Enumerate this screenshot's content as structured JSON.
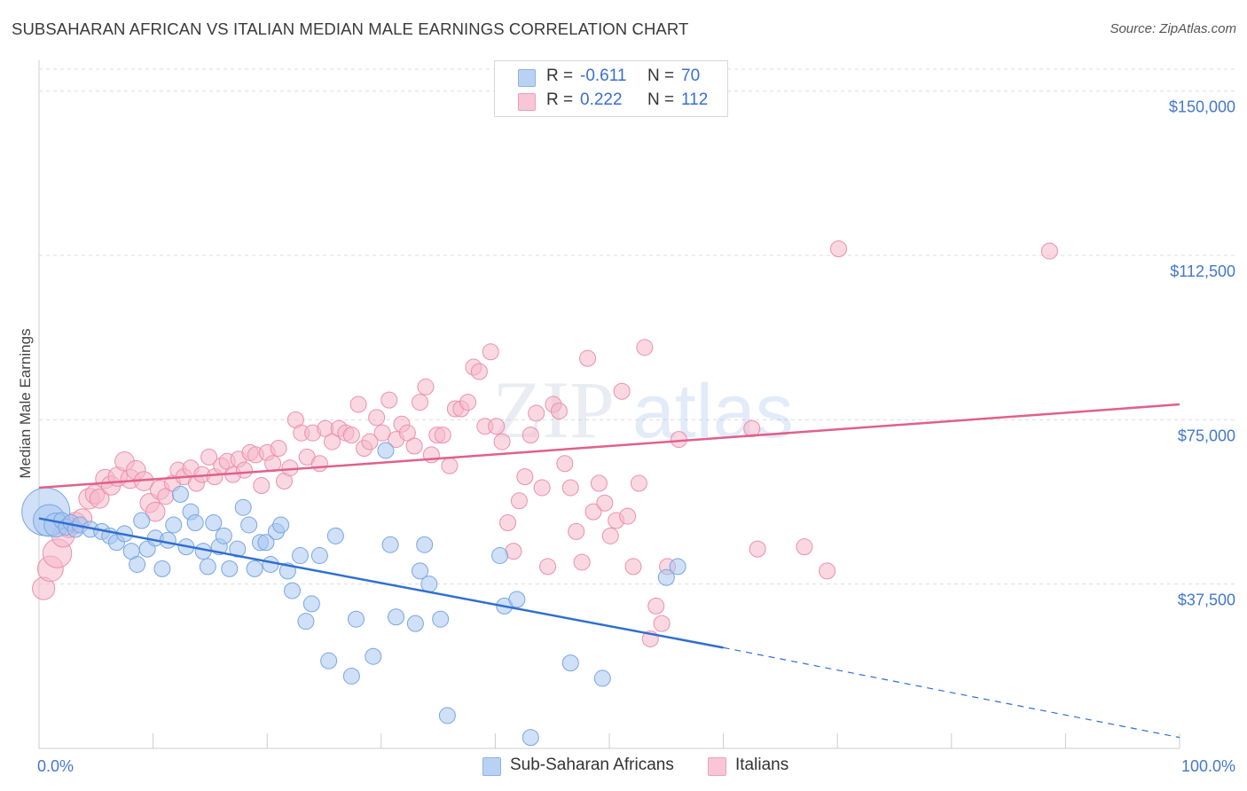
{
  "header": {
    "title": "SUBSAHARAN AFRICAN VS ITALIAN MEDIAN MALE EARNINGS CORRELATION CHART",
    "source": "Source: ZipAtlas.com"
  },
  "legend": {
    "rows": [
      {
        "r_label": "R =",
        "r_value": "-0.611",
        "n_label": "N =",
        "n_value": "70"
      },
      {
        "r_label": "R =",
        "r_value": "0.222",
        "n_label": "N =",
        "n_value": "112"
      }
    ],
    "series": [
      "Sub-Saharan Africans",
      "Italians"
    ]
  },
  "watermark": {
    "zip": "ZIP",
    "atlas": "atlas"
  },
  "colors": {
    "blue_fill": "#a8c6f0",
    "blue_stroke": "#7aa6e0",
    "blue_line": "#2f6fd0",
    "pink_fill": "#f5b8cb",
    "pink_stroke": "#ec8fae",
    "pink_line": "#e0608c",
    "tick_text": "#4477cc",
    "grid": "#dddddd"
  },
  "chart_data": {
    "type": "scatter",
    "title": "SUBSAHARAN AFRICAN VS ITALIAN MEDIAN MALE EARNINGS CORRELATION CHART",
    "xlabel": "",
    "ylabel": "Median Male Earnings",
    "xlim": [
      0,
      100
    ],
    "ylim": [
      0,
      155000
    ],
    "x_tick_labels": [
      "0.0%",
      "100.0%"
    ],
    "y_ticks": [
      37500,
      75000,
      112500,
      150000
    ],
    "y_tick_labels": [
      "$37,500",
      "$75,000",
      "$112,500",
      "$150,000"
    ],
    "grid": true,
    "legend_position": "top-center",
    "series": [
      {
        "name": "Sub-Saharan Africans",
        "r": -0.611,
        "n": 70,
        "trend": {
          "x": [
            0,
            60,
            100
          ],
          "y": [
            52500,
            23000,
            2500
          ],
          "solid_until": 60
        },
        "points": [
          [
            0.6,
            54000,
            3
          ],
          [
            0.9,
            52000,
            2
          ],
          [
            1.5,
            51000,
            1.5
          ],
          [
            2.0,
            52000,
            1
          ],
          [
            2.4,
            50500,
            1
          ],
          [
            2.8,
            51500,
            1
          ],
          [
            3.2,
            50000,
            1
          ],
          [
            3.6,
            51000,
            1
          ],
          [
            4.5,
            50000,
            1
          ],
          [
            5.5,
            49500,
            1
          ],
          [
            6.2,
            48500,
            1
          ],
          [
            6.8,
            47000,
            1
          ],
          [
            7.5,
            49000,
            1
          ],
          [
            8.1,
            45000,
            1
          ],
          [
            8.6,
            42000,
            1
          ],
          [
            9.0,
            52000,
            1
          ],
          [
            9.5,
            45500,
            1
          ],
          [
            10.2,
            48000,
            1
          ],
          [
            10.8,
            41000,
            1
          ],
          [
            11.3,
            47500,
            1
          ],
          [
            11.8,
            51000,
            1
          ],
          [
            12.4,
            58000,
            1
          ],
          [
            12.9,
            46000,
            1
          ],
          [
            13.3,
            54000,
            1
          ],
          [
            13.7,
            51500,
            1
          ],
          [
            14.4,
            45000,
            1
          ],
          [
            14.8,
            41500,
            1
          ],
          [
            15.3,
            51500,
            1
          ],
          [
            15.8,
            46000,
            1
          ],
          [
            16.2,
            48500,
            1
          ],
          [
            16.7,
            41000,
            1
          ],
          [
            17.4,
            45500,
            1
          ],
          [
            17.9,
            55000,
            1
          ],
          [
            18.4,
            51000,
            1
          ],
          [
            18.9,
            41000,
            1
          ],
          [
            19.4,
            47000,
            1
          ],
          [
            19.9,
            47000,
            1
          ],
          [
            20.3,
            42000,
            1
          ],
          [
            20.8,
            49500,
            1
          ],
          [
            21.2,
            51000,
            1
          ],
          [
            21.8,
            40500,
            1
          ],
          [
            22.2,
            36000,
            1
          ],
          [
            22.9,
            44000,
            1
          ],
          [
            23.4,
            29000,
            1
          ],
          [
            23.9,
            33000,
            1
          ],
          [
            24.6,
            44000,
            1
          ],
          [
            25.4,
            20000,
            1
          ],
          [
            26.0,
            48500,
            1
          ],
          [
            27.4,
            16500,
            1
          ],
          [
            27.8,
            29500,
            1
          ],
          [
            29.3,
            21000,
            1
          ],
          [
            30.4,
            68000,
            1
          ],
          [
            30.8,
            46500,
            1
          ],
          [
            31.3,
            30000,
            1
          ],
          [
            33.0,
            28500,
            1
          ],
          [
            33.4,
            40500,
            1
          ],
          [
            33.8,
            46500,
            1
          ],
          [
            34.2,
            37500,
            1
          ],
          [
            35.2,
            29500,
            1
          ],
          [
            35.8,
            7500,
            1
          ],
          [
            40.4,
            44000,
            1
          ],
          [
            40.8,
            32500,
            1
          ],
          [
            41.9,
            34000,
            1
          ],
          [
            43.1,
            2500,
            1
          ],
          [
            46.6,
            19500,
            1
          ],
          [
            49.4,
            16000,
            1
          ],
          [
            55.0,
            39000,
            1
          ],
          [
            56.0,
            41500,
            1
          ]
        ]
      },
      {
        "name": "Italians",
        "r": 0.222,
        "n": 112,
        "trend": {
          "x": [
            0,
            100
          ],
          "y": [
            59500,
            78500
          ]
        },
        "points": [
          [
            0.4,
            36500,
            1.4
          ],
          [
            1.0,
            41000,
            1.6
          ],
          [
            1.6,
            44500,
            1.8
          ],
          [
            2.1,
            48500,
            1.4
          ],
          [
            2.6,
            50500,
            1.3
          ],
          [
            3.2,
            51500,
            1.3
          ],
          [
            3.8,
            52500,
            1.2
          ],
          [
            4.4,
            57000,
            1.3
          ],
          [
            4.9,
            58000,
            1.2
          ],
          [
            5.3,
            57000,
            1.2
          ],
          [
            5.8,
            61500,
            1.2
          ],
          [
            6.3,
            60000,
            1.2
          ],
          [
            6.9,
            62000,
            1.2
          ],
          [
            7.5,
            65500,
            1.2
          ],
          [
            8.0,
            61500,
            1.2
          ],
          [
            8.5,
            63500,
            1.2
          ],
          [
            9.2,
            61000,
            1.2
          ],
          [
            9.7,
            56000,
            1.2
          ],
          [
            10.2,
            54000,
            1.2
          ],
          [
            10.6,
            59000,
            1.2
          ],
          [
            11.1,
            57500,
            1
          ],
          [
            11.7,
            60500,
            1
          ],
          [
            12.2,
            63500,
            1
          ],
          [
            12.7,
            62000,
            1
          ],
          [
            13.3,
            64000,
            1
          ],
          [
            13.8,
            60500,
            1
          ],
          [
            14.3,
            62500,
            1
          ],
          [
            14.9,
            66500,
            1
          ],
          [
            15.4,
            62000,
            1
          ],
          [
            16.0,
            64500,
            1
          ],
          [
            16.5,
            65500,
            1
          ],
          [
            17.0,
            62500,
            1
          ],
          [
            17.5,
            66000,
            1
          ],
          [
            18.0,
            63500,
            1
          ],
          [
            18.5,
            67500,
            1
          ],
          [
            19.0,
            67000,
            1
          ],
          [
            19.5,
            60000,
            1
          ],
          [
            20.0,
            67500,
            1
          ],
          [
            20.5,
            65000,
            1
          ],
          [
            21.0,
            68500,
            1
          ],
          [
            21.5,
            61000,
            1
          ],
          [
            22.0,
            64000,
            1
          ],
          [
            22.5,
            75000,
            1
          ],
          [
            23.0,
            72000,
            1
          ],
          [
            23.5,
            66500,
            1
          ],
          [
            24.0,
            72000,
            1
          ],
          [
            24.6,
            65000,
            1
          ],
          [
            25.1,
            73000,
            1
          ],
          [
            25.7,
            70000,
            1
          ],
          [
            26.3,
            73000,
            1
          ],
          [
            26.9,
            72000,
            1
          ],
          [
            27.4,
            71500,
            1
          ],
          [
            28.0,
            78500,
            1
          ],
          [
            28.5,
            68500,
            1
          ],
          [
            29.0,
            70000,
            1
          ],
          [
            29.6,
            75500,
            1
          ],
          [
            30.1,
            72000,
            1
          ],
          [
            30.7,
            79500,
            1
          ],
          [
            31.3,
            70500,
            1
          ],
          [
            31.8,
            74000,
            1
          ],
          [
            32.3,
            72000,
            1
          ],
          [
            32.9,
            69000,
            1
          ],
          [
            33.4,
            79000,
            1
          ],
          [
            33.9,
            82500,
            1
          ],
          [
            34.4,
            67000,
            1
          ],
          [
            34.9,
            71500,
            1
          ],
          [
            35.4,
            71500,
            1
          ],
          [
            36.0,
            64500,
            1
          ],
          [
            36.5,
            77500,
            1
          ],
          [
            37.0,
            77500,
            1
          ],
          [
            37.6,
            79000,
            1
          ],
          [
            38.1,
            87000,
            1
          ],
          [
            38.6,
            86000,
            1
          ],
          [
            39.1,
            73500,
            1
          ],
          [
            39.6,
            90500,
            1
          ],
          [
            40.1,
            73500,
            1
          ],
          [
            40.6,
            70000,
            1
          ],
          [
            41.1,
            51500,
            1
          ],
          [
            41.6,
            45000,
            1
          ],
          [
            42.1,
            56500,
            1
          ],
          [
            42.6,
            62000,
            1
          ],
          [
            43.1,
            71500,
            1
          ],
          [
            43.6,
            76500,
            1
          ],
          [
            44.1,
            59500,
            1
          ],
          [
            44.6,
            41500,
            1
          ],
          [
            45.1,
            78500,
            1
          ],
          [
            45.6,
            77000,
            1
          ],
          [
            46.1,
            65000,
            1
          ],
          [
            46.6,
            59500,
            1
          ],
          [
            47.1,
            49500,
            1
          ],
          [
            47.6,
            42500,
            1
          ],
          [
            48.1,
            89000,
            1
          ],
          [
            48.6,
            54000,
            1
          ],
          [
            49.1,
            60500,
            1
          ],
          [
            49.6,
            56000,
            1
          ],
          [
            50.1,
            48500,
            1
          ],
          [
            50.6,
            52000,
            1
          ],
          [
            51.1,
            81500,
            1
          ],
          [
            51.6,
            53000,
            1
          ],
          [
            52.1,
            41500,
            1
          ],
          [
            52.6,
            60500,
            1
          ],
          [
            53.1,
            91500,
            1
          ],
          [
            53.6,
            25000,
            1
          ],
          [
            54.1,
            32500,
            1
          ],
          [
            54.6,
            28500,
            1
          ],
          [
            55.1,
            41500,
            1
          ],
          [
            56.1,
            70500,
            1
          ],
          [
            62.5,
            73000,
            1
          ],
          [
            63.0,
            45500,
            1
          ],
          [
            67.1,
            46000,
            1
          ],
          [
            69.1,
            40500,
            1
          ],
          [
            70.1,
            114000,
            1
          ],
          [
            88.6,
            113500,
            1
          ]
        ]
      }
    ]
  }
}
